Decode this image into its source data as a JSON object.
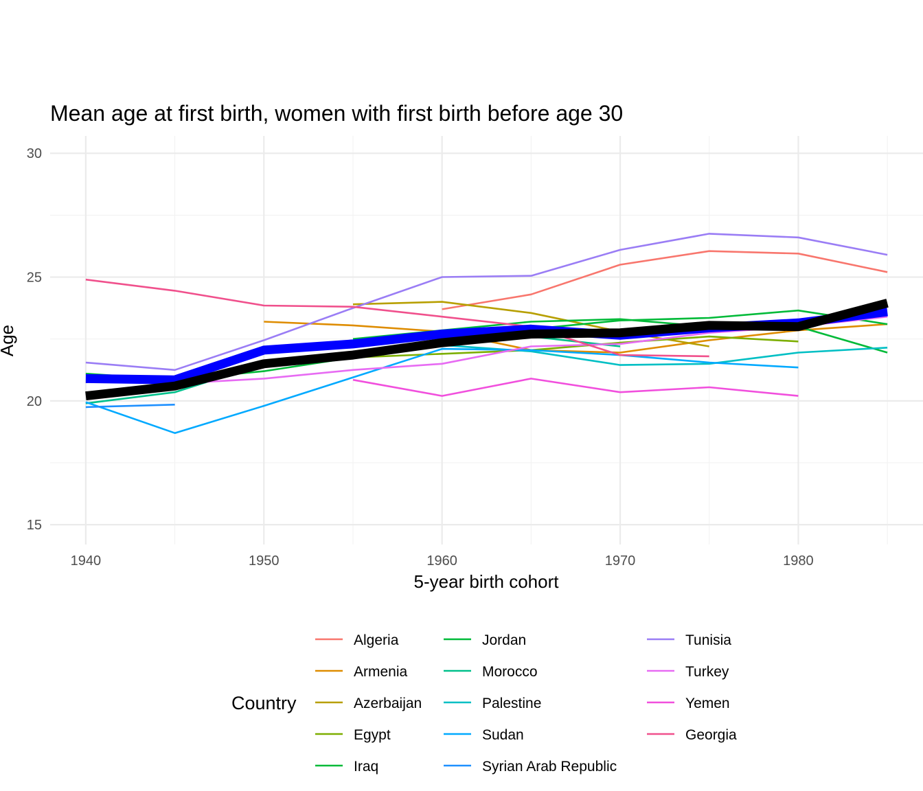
{
  "chart_data": {
    "type": "line",
    "title": "Mean age at first birth, women with first birth before age 30",
    "xlabel": "5-year birth cohort",
    "ylabel": "Age",
    "xlim": [
      1938,
      1987
    ],
    "ylim": [
      14.2,
      30.7
    ],
    "x_ticks": [
      1940,
      1950,
      1960,
      1970,
      1980
    ],
    "y_ticks": [
      15,
      20,
      25,
      30
    ],
    "legend_title": "Country",
    "legend_position": "bottom",
    "series": [
      {
        "name": "Algeria",
        "color": "#F8766D",
        "points": [
          [
            1960,
            23.7
          ],
          [
            1965,
            24.3
          ],
          [
            1970,
            25.5
          ],
          [
            1975,
            26.05
          ],
          [
            1980,
            25.95
          ],
          [
            1985,
            25.2
          ]
        ]
      },
      {
        "name": "Armenia",
        "color": "#DE8C00",
        "points": [
          [
            1950,
            23.2
          ],
          [
            1955,
            23.05
          ],
          [
            1960,
            22.8
          ],
          [
            1965,
            22.05
          ],
          [
            1970,
            21.95
          ],
          [
            1975,
            22.45
          ],
          [
            1980,
            22.85
          ],
          [
            1985,
            23.1
          ]
        ]
      },
      {
        "name": "Azerbaijan",
        "color": "#B79F00",
        "points": [
          [
            1955,
            23.9
          ],
          [
            1960,
            24.0
          ],
          [
            1965,
            23.55
          ],
          [
            1970,
            22.8
          ],
          [
            1975,
            22.2
          ]
        ]
      },
      {
        "name": "Egypt",
        "color": "#7CAE00",
        "points": [
          [
            1950,
            21.6
          ],
          [
            1955,
            21.75
          ],
          [
            1960,
            21.9
          ],
          [
            1965,
            22.05
          ],
          [
            1970,
            22.35
          ],
          [
            1975,
            22.6
          ],
          [
            1980,
            22.4
          ]
        ]
      },
      {
        "name": "Iraq",
        "color": "#00BA38",
        "points": [
          [
            1955,
            22.5
          ],
          [
            1960,
            22.85
          ],
          [
            1965,
            23.2
          ],
          [
            1970,
            23.3
          ],
          [
            1975,
            23.0
          ],
          [
            1980,
            23.0
          ],
          [
            1985,
            21.95
          ]
        ]
      },
      {
        "name": "Jordan",
        "color": "#00BA38",
        "points": [
          [
            1940,
            21.1
          ],
          [
            1945,
            20.85
          ],
          [
            1950,
            21.2
          ],
          [
            1955,
            21.75
          ],
          [
            1960,
            22.3
          ],
          [
            1965,
            22.9
          ],
          [
            1970,
            23.25
          ],
          [
            1975,
            23.35
          ],
          [
            1980,
            23.65
          ],
          [
            1985,
            23.1
          ]
        ]
      },
      {
        "name": "Morocco",
        "color": "#00C08B",
        "points": [
          [
            1940,
            19.9
          ],
          [
            1945,
            20.35
          ],
          [
            1950,
            21.5
          ],
          [
            1955,
            21.85
          ],
          [
            1960,
            22.4
          ],
          [
            1965,
            22.6
          ],
          [
            1970,
            22.2
          ]
        ]
      },
      {
        "name": "Palestine",
        "color": "#00BFC4",
        "points": [
          [
            1960,
            22.25
          ],
          [
            1965,
            22.0
          ],
          [
            1970,
            21.45
          ],
          [
            1975,
            21.5
          ],
          [
            1980,
            21.95
          ],
          [
            1985,
            22.15
          ]
        ]
      },
      {
        "name": "Sudan",
        "color": "#00A9FF",
        "points": [
          [
            1940,
            19.95
          ],
          [
            1945,
            18.7
          ],
          [
            1950,
            19.8
          ],
          [
            1955,
            20.95
          ],
          [
            1960,
            22.1
          ],
          [
            1965,
            22.05
          ],
          [
            1970,
            21.85
          ],
          [
            1975,
            21.55
          ],
          [
            1980,
            21.35
          ]
        ]
      },
      {
        "name": "Syrian Arab Republic",
        "color": "#1E90FF",
        "points": [
          [
            1940,
            19.75
          ],
          [
            1945,
            19.85
          ]
        ]
      },
      {
        "name": "Tunisia",
        "color": "#9A7DF5",
        "points": [
          [
            1940,
            21.55
          ],
          [
            1945,
            21.25
          ],
          [
            1950,
            22.45
          ],
          [
            1955,
            23.75
          ],
          [
            1960,
            25.0
          ],
          [
            1965,
            25.05
          ],
          [
            1970,
            26.1
          ],
          [
            1975,
            26.75
          ],
          [
            1980,
            26.6
          ],
          [
            1985,
            25.9
          ]
        ]
      },
      {
        "name": "Turkey",
        "color": "#E76BF3",
        "points": [
          [
            1945,
            20.7
          ],
          [
            1950,
            20.9
          ],
          [
            1955,
            21.25
          ],
          [
            1960,
            21.5
          ],
          [
            1965,
            22.2
          ],
          [
            1970,
            22.3
          ],
          [
            1975,
            22.75
          ],
          [
            1980,
            23.0
          ],
          [
            1985,
            23.4
          ]
        ]
      },
      {
        "name": "Yemen",
        "color": "#F14FDD",
        "points": [
          [
            1955,
            20.85
          ],
          [
            1960,
            20.2
          ],
          [
            1965,
            20.9
          ],
          [
            1970,
            20.35
          ],
          [
            1975,
            20.55
          ],
          [
            1980,
            20.2
          ]
        ]
      },
      {
        "name": "Georgia",
        "color": "#F0508C",
        "points": [
          [
            1940,
            24.9
          ],
          [
            1945,
            24.45
          ],
          [
            1950,
            23.85
          ],
          [
            1955,
            23.8
          ],
          [
            1960,
            23.4
          ],
          [
            1965,
            23.0
          ],
          [
            1970,
            21.85
          ],
          [
            1975,
            21.8
          ]
        ]
      }
    ],
    "summary_lines": [
      {
        "name": "mean-blue",
        "color": "#0000FF",
        "points": [
          [
            1940,
            20.9
          ],
          [
            1945,
            20.85
          ],
          [
            1950,
            22.05
          ],
          [
            1955,
            22.3
          ],
          [
            1960,
            22.7
          ],
          [
            1965,
            22.9
          ],
          [
            1970,
            22.65
          ],
          [
            1975,
            22.95
          ],
          [
            1980,
            23.15
          ],
          [
            1985,
            23.6
          ]
        ]
      },
      {
        "name": "mean-black",
        "color": "#000000",
        "points": [
          [
            1940,
            20.2
          ],
          [
            1945,
            20.6
          ],
          [
            1950,
            21.5
          ],
          [
            1955,
            21.85
          ],
          [
            1960,
            22.35
          ],
          [
            1965,
            22.7
          ],
          [
            1970,
            22.75
          ],
          [
            1975,
            23.05
          ],
          [
            1980,
            23.0
          ],
          [
            1985,
            23.95
          ]
        ]
      }
    ]
  }
}
